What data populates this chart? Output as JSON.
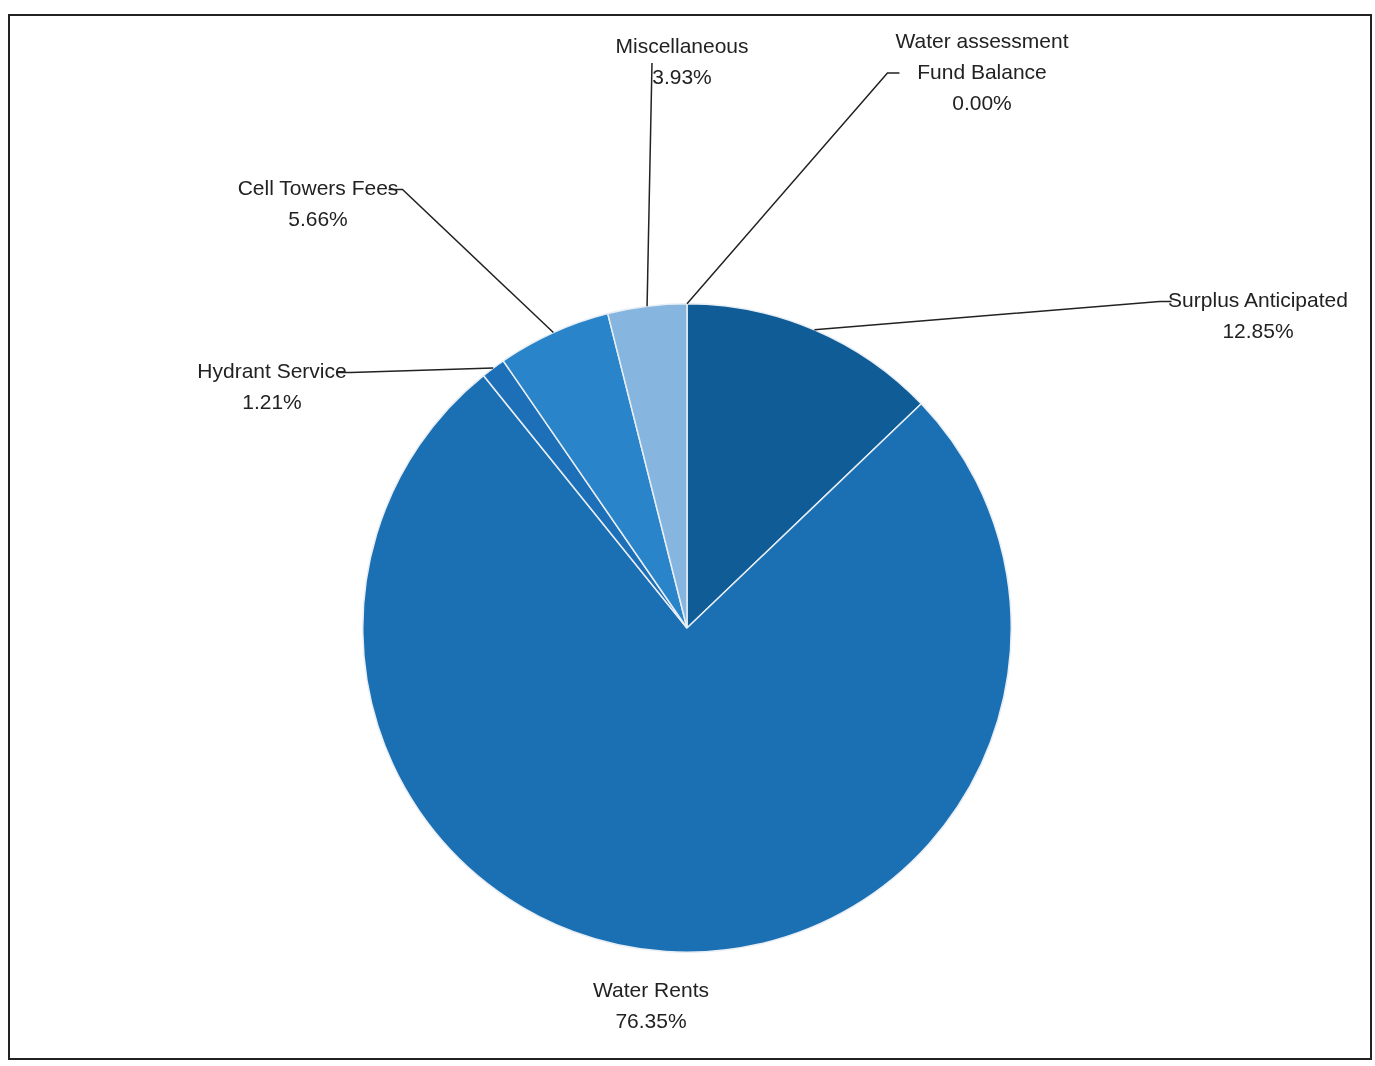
{
  "chart_data": {
    "type": "pie",
    "categories": [
      "Surplus Anticipated",
      "Water Rents",
      "Hydrant Service",
      "Cell Towers Fees",
      "Miscellaneous",
      "Water assessment Fund Balance"
    ],
    "values": [
      12.85,
      76.35,
      1.21,
      5.66,
      3.93,
      0.0
    ],
    "value_labels": [
      "12.85%",
      "76.35%",
      "1.21%",
      "5.66%",
      "3.93%",
      "0.00%"
    ],
    "colors": [
      "#0f5c97",
      "#1b6fb3",
      "#1d6fb8",
      "#2a84c9",
      "#86b6df",
      "#5b9bd5"
    ],
    "legend": false
  }
}
